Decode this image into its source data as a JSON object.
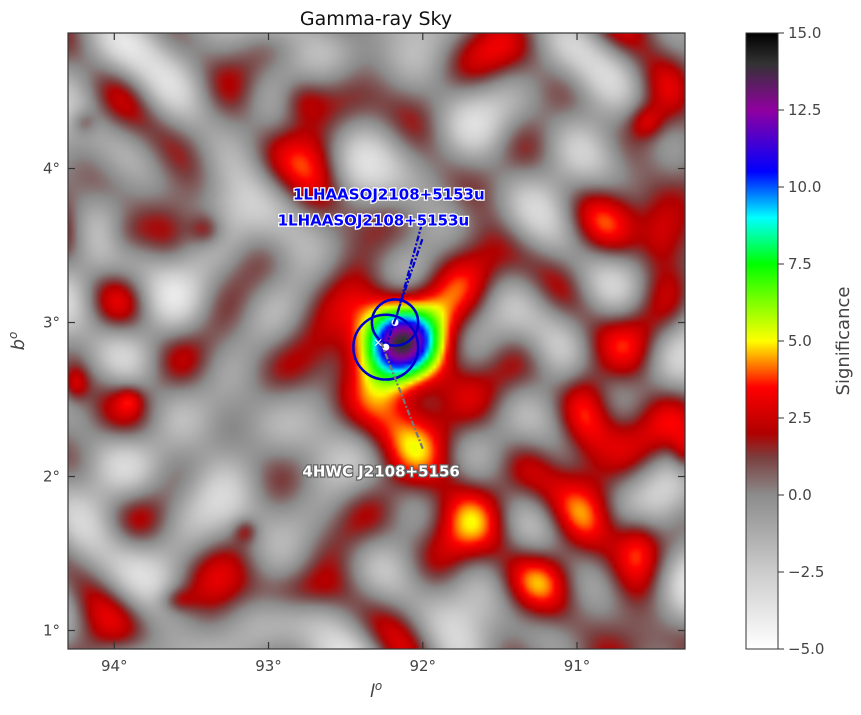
{
  "chart_data": {
    "type": "heatmap",
    "title": "Gamma-ray Sky",
    "xlabel": "l",
    "xlabel_sup": "o",
    "ylabel": "b",
    "ylabel_sup": "o",
    "xlim": [
      94.3,
      90.3
    ],
    "ylim": [
      0.88,
      4.88
    ],
    "xticks": [
      94,
      93,
      92,
      91
    ],
    "xtick_labels": [
      "94°",
      "93°",
      "92°",
      "91°"
    ],
    "yticks": [
      1,
      2,
      3,
      4
    ],
    "ytick_labels": [
      "1°",
      "2°",
      "3°",
      "4°"
    ],
    "colorbar": {
      "label": "Significance",
      "range": [
        -5.0,
        15.0
      ],
      "ticks": [
        -5.0,
        -2.5,
        0.0,
        2.5,
        5.0,
        7.5,
        10.0,
        12.5,
        15.0
      ],
      "tick_labels": [
        "−5.0",
        "−2.5",
        "0.0",
        "2.5",
        "5.0",
        "7.5",
        "10.0",
        "12.5",
        "15.0"
      ],
      "stops": [
        {
          "value": -5.0,
          "color": "#ffffff"
        },
        {
          "value": -2.5,
          "color": "#cccccc"
        },
        {
          "value": 0.0,
          "color": "#8c8c8c"
        },
        {
          "value": 1.2,
          "color": "#7a4040"
        },
        {
          "value": 2.0,
          "color": "#b00000"
        },
        {
          "value": 3.5,
          "color": "#ff0000"
        },
        {
          "value": 5.0,
          "color": "#ffff00"
        },
        {
          "value": 7.5,
          "color": "#00ff00"
        },
        {
          "value": 9.0,
          "color": "#00ffff"
        },
        {
          "value": 10.5,
          "color": "#0000ff"
        },
        {
          "value": 12.5,
          "color": "#9000a0"
        },
        {
          "value": 14.0,
          "color": "#333333"
        },
        {
          "value": 15.0,
          "color": "#000000"
        }
      ]
    },
    "blobs": [
      {
        "l": 92.18,
        "b": 2.85,
        "sigma_l": 0.18,
        "sigma_b": 0.18,
        "peak": 9.5
      },
      {
        "l": 92.1,
        "b": 2.55,
        "sigma_l": 0.35,
        "sigma_b": 0.4,
        "peak": 2.8
      },
      {
        "l": 92.25,
        "b": 2.85,
        "sigma_l": 0.45,
        "sigma_b": 0.55,
        "peak": 1.5
      },
      {
        "l": 92.8,
        "b": 4.45,
        "sigma_l": 0.12,
        "sigma_b": 0.12,
        "peak": 3.2
      },
      {
        "l": 92.65,
        "b": 3.95,
        "sigma_l": 0.15,
        "sigma_b": 0.25,
        "peak": 3.0
      },
      {
        "l": 93.95,
        "b": 3.55,
        "sigma_l": 0.12,
        "sigma_b": 0.12,
        "peak": 3.5
      },
      {
        "l": 93.4,
        "b": 3.6,
        "sigma_l": 0.08,
        "sigma_b": 0.08,
        "peak": 2.6
      },
      {
        "l": 91.45,
        "b": 1.65,
        "sigma_l": 0.25,
        "sigma_b": 0.2,
        "peak": 3.2
      },
      {
        "l": 91.2,
        "b": 1.35,
        "sigma_l": 0.2,
        "sigma_b": 0.15,
        "peak": 2.8
      },
      {
        "l": 92.85,
        "b": 1.25,
        "sigma_l": 0.2,
        "sigma_b": 0.12,
        "peak": 3.0
      },
      {
        "l": 90.95,
        "b": 2.5,
        "sigma_l": 0.12,
        "sigma_b": 0.3,
        "peak": 2.8
      },
      {
        "l": 90.6,
        "b": 1.6,
        "sigma_l": 0.1,
        "sigma_b": 0.15,
        "peak": 2.6
      },
      {
        "l": 90.45,
        "b": 3.55,
        "sigma_l": 0.1,
        "sigma_b": 0.15,
        "peak": 2.3
      },
      {
        "l": 90.55,
        "b": 4.3,
        "sigma_l": 0.08,
        "sigma_b": 0.08,
        "peak": 2.2
      },
      {
        "l": 94.2,
        "b": 4.3,
        "sigma_l": 0.06,
        "sigma_b": 0.06,
        "peak": 1.9
      },
      {
        "l": 94.25,
        "b": 2.6,
        "sigma_l": 0.06,
        "sigma_b": 0.08,
        "peak": 2.2
      },
      {
        "l": 93.15,
        "b": 1.65,
        "sigma_l": 0.06,
        "sigma_b": 0.06,
        "peak": 2.2
      },
      {
        "l": 93.6,
        "b": 1.2,
        "sigma_l": 0.08,
        "sigma_b": 0.06,
        "peak": 2.0
      },
      {
        "l": 90.3,
        "b": 2.15,
        "sigma_l": 0.06,
        "sigma_b": 0.1,
        "peak": 2.2
      },
      {
        "l": 93.9,
        "b": 2.5,
        "sigma_l": 0.06,
        "sigma_b": 0.06,
        "peak": 1.7
      }
    ],
    "sources": [
      {
        "name": "1LHAASOJ2108+5153u",
        "label_color": "#0000ff",
        "circle_color": "#0000cc",
        "l": 92.18,
        "b": 3.0,
        "radius_deg": 0.15,
        "label_l": 92.22,
        "label_b": 3.8,
        "line_to_l": 91.99,
        "line_to_b": 3.7
      },
      {
        "name": "1LHAASOJ2108+5153u",
        "label_color": "#0000ff",
        "circle_color": "#0000cc",
        "l": 92.24,
        "b": 2.84,
        "radius_deg": 0.21,
        "label_l": 92.32,
        "label_b": 3.63,
        "line_to_l": 92.0,
        "line_to_b": 3.55
      },
      {
        "name": "4HWC J2108+5156",
        "label_color": "#ffffff",
        "circle_color": "#777777",
        "l": 92.27,
        "b": 2.87,
        "radius_deg": 0,
        "label_l": 92.27,
        "label_b": 2.0,
        "line_to_l": 92.0,
        "line_to_b": 2.18
      }
    ]
  }
}
